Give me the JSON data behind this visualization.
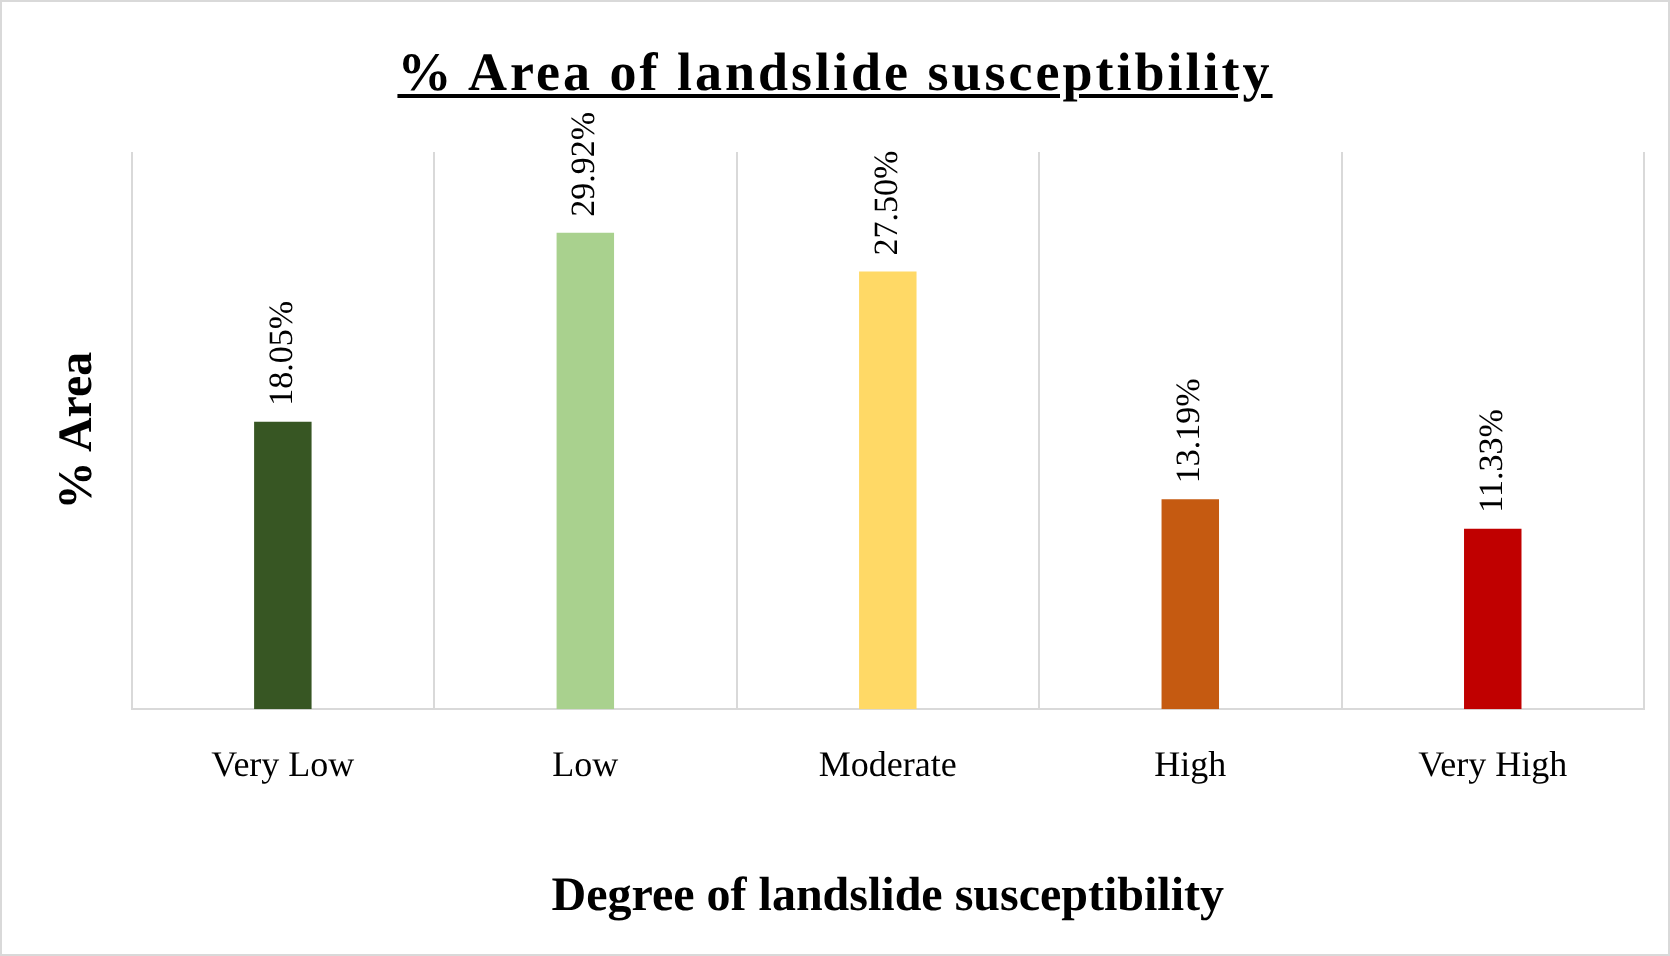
{
  "chart_data": {
    "type": "bar",
    "title": "% Area of landslide susceptibility",
    "xlabel": "Degree of landslide susceptibility",
    "ylabel": "% Area",
    "categories": [
      "Very Low",
      "Low",
      "Moderate",
      "High",
      "Very High"
    ],
    "values": [
      18.05,
      29.92,
      27.5,
      13.19,
      11.33
    ],
    "colors": [
      "#375623",
      "#a9d18e",
      "#ffd966",
      "#c55a11",
      "#c00000"
    ],
    "value_labels": [
      "18.05%",
      "29.92%",
      "27.50%",
      "13.19%",
      "11.33%"
    ],
    "ylim": [
      0,
      35
    ],
    "tick_labels": "x",
    "grid": "x",
    "legend": false
  }
}
